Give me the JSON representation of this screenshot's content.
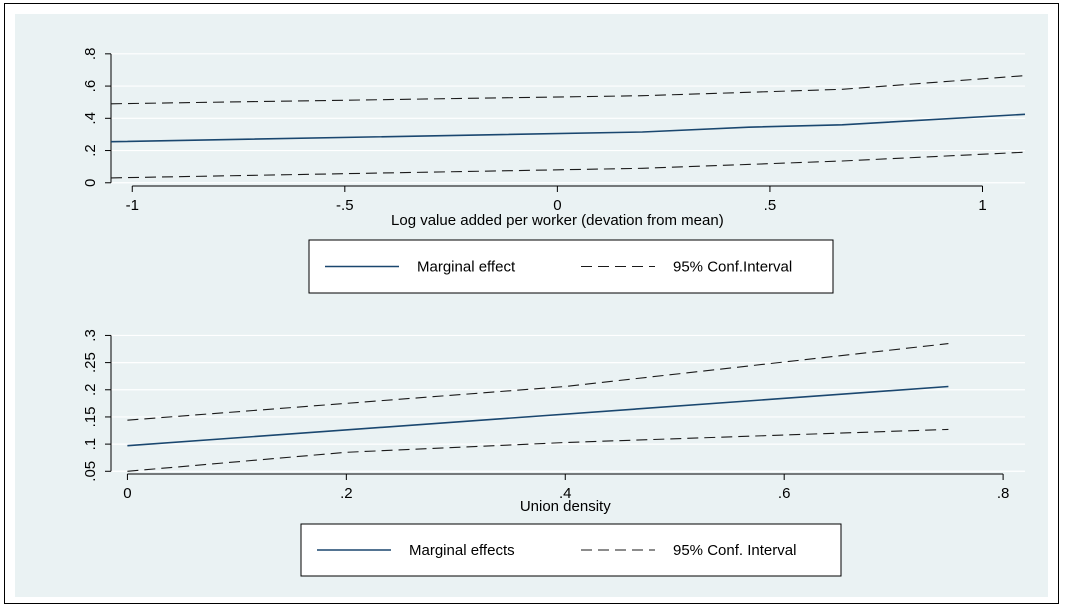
{
  "chart_data": [
    {
      "type": "line",
      "xlabel": "Log value added per worker (devation from mean)",
      "ylabel": "",
      "xlim": [
        -1.05,
        1.1
      ],
      "ylim": [
        0,
        0.8
      ],
      "xticks": [
        -1,
        -0.5,
        0,
        0.5,
        1
      ],
      "xtick_labels": [
        "-1",
        "-.5",
        "0",
        ".5",
        "1"
      ],
      "yticks": [
        0,
        0.2,
        0.4,
        0.6,
        0.8
      ],
      "ytick_labels": [
        "0",
        ".2",
        ".4",
        ".6",
        ".8"
      ],
      "grid": true,
      "legend_position": "bottom",
      "series": [
        {
          "name": "Marginal effect",
          "style": "solid",
          "color": "#1a476f",
          "x": [
            -1.05,
            0.2,
            0.45,
            0.67,
            1.1
          ],
          "y": [
            0.255,
            0.315,
            0.345,
            0.36,
            0.425
          ]
        },
        {
          "name": "95% Conf.Interval",
          "style": "dashed",
          "color": "#1a1a1a",
          "x": [
            -1.05,
            0.2,
            0.67,
            1.1
          ],
          "y": [
            0.49,
            0.54,
            0.58,
            0.665
          ]
        },
        {
          "name": "",
          "style": "dashed",
          "color": "#1a1a1a",
          "x": [
            -1.05,
            0.2,
            0.67,
            1.1
          ],
          "y": [
            0.03,
            0.09,
            0.135,
            0.19
          ]
        }
      ]
    },
    {
      "type": "line",
      "xlabel": "Union density",
      "ylabel": "",
      "xlim": [
        0,
        0.8
      ],
      "ylim": [
        0.05,
        0.3
      ],
      "xticks": [
        0,
        0.2,
        0.4,
        0.6,
        0.8
      ],
      "xtick_labels": [
        "0",
        ".2",
        ".4",
        ".6",
        ".8"
      ],
      "yticks": [
        0.05,
        0.1,
        0.15,
        0.2,
        0.25,
        0.3
      ],
      "ytick_labels": [
        ".05",
        ".1",
        ".15",
        ".2",
        ".25",
        ".3"
      ],
      "grid": true,
      "legend_position": "bottom",
      "series": [
        {
          "name": "Marginal effects",
          "style": "solid",
          "color": "#1a476f",
          "x": [
            0,
            0.75
          ],
          "y": [
            0.097,
            0.206
          ]
        },
        {
          "name": "95% Conf. Interval",
          "style": "dashed",
          "color": "#1a1a1a",
          "x": [
            0,
            0.4,
            0.75
          ],
          "y": [
            0.144,
            0.206,
            0.285
          ]
        },
        {
          "name": "",
          "style": "dashed",
          "color": "#1a1a1a",
          "x": [
            0,
            0.2,
            0.4,
            0.75
          ],
          "y": [
            0.05,
            0.085,
            0.103,
            0.127
          ]
        }
      ]
    }
  ]
}
